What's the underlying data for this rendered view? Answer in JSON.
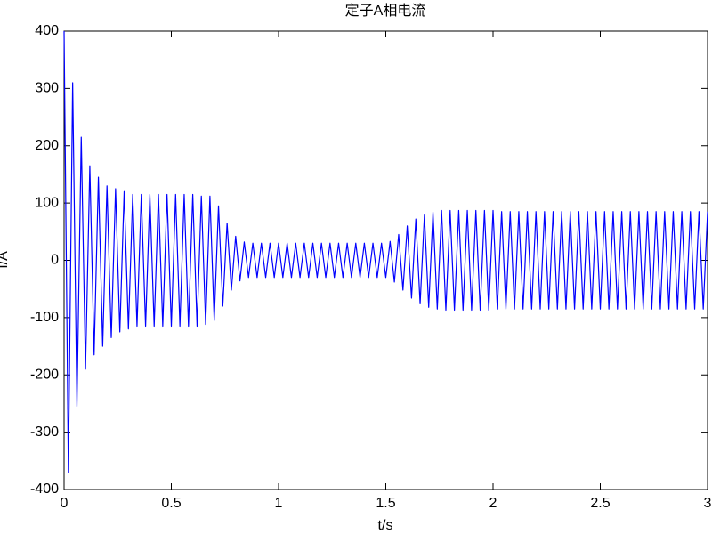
{
  "chart_data": {
    "type": "line",
    "title": "定子A相电流",
    "x_label": "t/s",
    "y_label": "I/A",
    "x": [
      0,
      0.02,
      0.04,
      0.06,
      0.08,
      0.1,
      0.12,
      0.14,
      0.16,
      0.18,
      0.2,
      0.22,
      0.24,
      0.26,
      0.28,
      0.3,
      0.32,
      0.34,
      0.36,
      0.38,
      0.4,
      0.42,
      0.44,
      0.46,
      0.48,
      0.5,
      0.52,
      0.54,
      0.56,
      0.58,
      0.6,
      0.62,
      0.64,
      0.66,
      0.68,
      0.7,
      0.72,
      0.74,
      0.76,
      0.78,
      0.8,
      0.82,
      0.84,
      0.86,
      0.88,
      0.9,
      0.92,
      0.94,
      0.96,
      0.98,
      1,
      1.02,
      1.04,
      1.06,
      1.08,
      1.1,
      1.12,
      1.14,
      1.16,
      1.18,
      1.2,
      1.22,
      1.24,
      1.26,
      1.28,
      1.3,
      1.32,
      1.34,
      1.36,
      1.38,
      1.4,
      1.42,
      1.44,
      1.46,
      1.48,
      1.5,
      1.52,
      1.54,
      1.56,
      1.58,
      1.6,
      1.62,
      1.64,
      1.66,
      1.68,
      1.7,
      1.72,
      1.74,
      1.76,
      1.78,
      1.8,
      1.82,
      1.84,
      1.86,
      1.88,
      1.9,
      1.92,
      1.94,
      1.96,
      1.98,
      2,
      2.02,
      2.04,
      2.06,
      2.08,
      2.1,
      2.12,
      2.14,
      2.16,
      2.18,
      2.2,
      2.22,
      2.24,
      2.26,
      2.28,
      2.3,
      2.32,
      2.34,
      2.36,
      2.38,
      2.4,
      2.42,
      2.44,
      2.46,
      2.48,
      2.5,
      2.52,
      2.54,
      2.56,
      2.58,
      2.6,
      2.62,
      2.64,
      2.66,
      2.68,
      2.7,
      2.72,
      2.74,
      2.76,
      2.78,
      2.8,
      2.82,
      2.84,
      2.86,
      2.88,
      2.9,
      2.92,
      2.94,
      2.96,
      2.98,
      3
    ],
    "series": [
      {
        "color": "#0000ff",
        "values": [
          400,
          -370,
          310,
          -255,
          215,
          -190,
          165,
          -165,
          145,
          -150,
          130,
          -135,
          125,
          -125,
          120,
          -120,
          115,
          -115,
          115,
          -115,
          115,
          -115,
          115,
          -115,
          115,
          -115,
          115,
          -115,
          115,
          -115,
          115,
          -115,
          112,
          -112,
          112,
          -105,
          95,
          -80,
          65,
          -52,
          42,
          -36,
          32,
          -30,
          30,
          -30,
          30,
          -30,
          30,
          -30,
          30,
          -30,
          30,
          -30,
          30,
          -30,
          30,
          -30,
          30,
          -30,
          30,
          -30,
          30,
          -30,
          30,
          -30,
          30,
          -30,
          30,
          -30,
          30,
          -30,
          30,
          -30,
          30,
          -30,
          33,
          -38,
          45,
          -52,
          60,
          -66,
          72,
          -76,
          79,
          -82,
          84,
          -85,
          87,
          -87,
          87,
          -87,
          87,
          -87,
          87,
          -87,
          87,
          -87,
          87,
          -87,
          87,
          -85,
          85,
          -85,
          85,
          -85,
          85,
          -85,
          85,
          -85,
          85,
          -85,
          85,
          -85,
          85,
          -85,
          85,
          -85,
          85,
          -85,
          85,
          -85,
          85,
          -85,
          85,
          -85,
          85,
          -85,
          85,
          -85,
          85,
          -85,
          85,
          -85,
          85,
          -85,
          85,
          -85,
          85,
          -85,
          85,
          -85,
          85,
          -85,
          85,
          -85,
          85,
          -85,
          85,
          -85,
          85
        ]
      }
    ],
    "xlim": [
      0,
      3
    ],
    "xticks": [
      0,
      0.5,
      1,
      1.5,
      2,
      2.5,
      3
    ],
    "ylim": [
      -400,
      400
    ],
    "yticks": [
      -400,
      -300,
      -200,
      -100,
      0,
      100,
      200,
      300,
      400
    ]
  }
}
